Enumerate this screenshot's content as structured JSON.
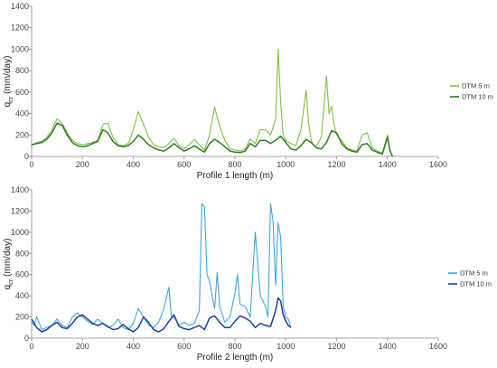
{
  "chart_data": [
    {
      "type": "line",
      "title": "",
      "xlabel": "Profile 1 length (m)",
      "ylabel_main": "q",
      "ylabel_sub": "cr",
      "ylabel_unit": " (mm/day)",
      "xlim": [
        0,
        1600
      ],
      "ylim": [
        0,
        1400
      ],
      "xticks": [
        0,
        200,
        400,
        600,
        800,
        1000,
        1200,
        1400,
        1600
      ],
      "yticks": [
        0,
        200,
        400,
        600,
        800,
        1000,
        1200,
        1400
      ],
      "grid": false,
      "legend_position": "right",
      "series": [
        {
          "name": "DTM 5 m",
          "color": "#7dc243",
          "x": [
            0,
            20,
            40,
            60,
            80,
            100,
            120,
            140,
            160,
            180,
            200,
            220,
            240,
            260,
            280,
            300,
            320,
            340,
            360,
            380,
            400,
            420,
            440,
            460,
            480,
            500,
            520,
            540,
            560,
            580,
            600,
            620,
            640,
            660,
            680,
            700,
            720,
            740,
            760,
            780,
            800,
            820,
            840,
            860,
            880,
            900,
            920,
            940,
            960,
            970,
            980,
            990,
            1000,
            1020,
            1040,
            1060,
            1080,
            1090,
            1100,
            1110,
            1120,
            1140,
            1160,
            1170,
            1180,
            1190,
            1200,
            1220,
            1240,
            1260,
            1280,
            1300,
            1320,
            1340,
            1360,
            1380,
            1400,
            1410,
            1420
          ],
          "values": [
            100,
            130,
            140,
            180,
            250,
            350,
            310,
            220,
            150,
            120,
            110,
            120,
            130,
            150,
            300,
            310,
            180,
            110,
            100,
            120,
            250,
            420,
            300,
            180,
            110,
            90,
            80,
            120,
            170,
            100,
            70,
            110,
            160,
            110,
            60,
            200,
            460,
            280,
            150,
            70,
            60,
            50,
            70,
            160,
            120,
            250,
            250,
            200,
            350,
            1000,
            500,
            200,
            150,
            120,
            100,
            250,
            620,
            300,
            150,
            100,
            90,
            180,
            750,
            400,
            470,
            300,
            200,
            150,
            80,
            60,
            50,
            200,
            220,
            80,
            50,
            30,
            200,
            60,
            0
          ]
        },
        {
          "name": "DTM 10 m",
          "color": "#2e7d24",
          "x": [
            0,
            20,
            40,
            60,
            80,
            100,
            120,
            140,
            160,
            180,
            200,
            220,
            240,
            260,
            280,
            300,
            320,
            340,
            360,
            380,
            400,
            420,
            440,
            460,
            480,
            500,
            520,
            540,
            560,
            580,
            600,
            620,
            640,
            660,
            680,
            700,
            720,
            740,
            760,
            780,
            800,
            820,
            840,
            860,
            880,
            900,
            920,
            940,
            960,
            980,
            1000,
            1020,
            1040,
            1060,
            1080,
            1100,
            1120,
            1140,
            1160,
            1180,
            1200,
            1220,
            1240,
            1260,
            1280,
            1300,
            1320,
            1340,
            1360,
            1380,
            1400,
            1410,
            1420
          ],
          "values": [
            110,
            120,
            130,
            160,
            220,
            310,
            290,
            200,
            130,
            100,
            90,
            100,
            120,
            140,
            250,
            220,
            140,
            100,
            90,
            100,
            140,
            200,
            160,
            110,
            80,
            60,
            50,
            80,
            120,
            80,
            50,
            70,
            100,
            70,
            40,
            120,
            160,
            130,
            90,
            50,
            40,
            35,
            50,
            120,
            90,
            150,
            150,
            120,
            150,
            190,
            130,
            70,
            60,
            100,
            160,
            130,
            80,
            70,
            130,
            240,
            220,
            120,
            70,
            50,
            40,
            110,
            120,
            60,
            40,
            20,
            180,
            50,
            0
          ]
        }
      ]
    },
    {
      "type": "line",
      "title": "",
      "xlabel": "Profile 2 length (m)",
      "ylabel_main": "q",
      "ylabel_sub": "cr",
      "ylabel_unit": " (mm/day)",
      "xlim": [
        0,
        1600
      ],
      "ylim": [
        0,
        1400
      ],
      "xticks": [
        0,
        200,
        400,
        600,
        800,
        1000,
        1200,
        1400,
        1600
      ],
      "yticks": [
        0,
        200,
        400,
        600,
        800,
        1000,
        1200,
        1400
      ],
      "grid": false,
      "legend_position": "right",
      "series": [
        {
          "name": "DTM 5 m",
          "color": "#41a6dd",
          "x": [
            0,
            10,
            20,
            40,
            60,
            80,
            100,
            120,
            140,
            160,
            180,
            200,
            220,
            240,
            260,
            280,
            300,
            320,
            340,
            360,
            380,
            400,
            420,
            440,
            460,
            480,
            500,
            520,
            540,
            550,
            560,
            580,
            600,
            620,
            640,
            660,
            670,
            680,
            690,
            700,
            710,
            720,
            730,
            740,
            760,
            780,
            800,
            810,
            820,
            840,
            860,
            880,
            900,
            920,
            930,
            940,
            950,
            960,
            970,
            980,
            990,
            1000,
            1010,
            1020
          ],
          "values": [
            150,
            120,
            200,
            80,
            100,
            120,
            180,
            120,
            100,
            200,
            240,
            200,
            160,
            130,
            180,
            140,
            100,
            120,
            180,
            100,
            80,
            140,
            280,
            200,
            120,
            100,
            150,
            280,
            480,
            200,
            200,
            120,
            150,
            120,
            140,
            260,
            1270,
            1240,
            600,
            540,
            400,
            280,
            620,
            300,
            150,
            200,
            420,
            600,
            320,
            300,
            200,
            1000,
            400,
            300,
            200,
            1270,
            1100,
            500,
            1090,
            950,
            300,
            200,
            180,
            100
          ]
        },
        {
          "name": "DTM 10 m",
          "color": "#1f3f9e",
          "x": [
            0,
            20,
            40,
            60,
            80,
            100,
            120,
            140,
            160,
            180,
            200,
            220,
            240,
            260,
            280,
            300,
            320,
            340,
            360,
            380,
            400,
            420,
            440,
            460,
            480,
            500,
            520,
            540,
            560,
            580,
            600,
            620,
            640,
            660,
            680,
            700,
            720,
            740,
            760,
            780,
            800,
            820,
            840,
            860,
            880,
            900,
            920,
            940,
            960,
            970,
            980,
            990,
            1000,
            1010,
            1020
          ],
          "values": [
            180,
            100,
            60,
            80,
            120,
            150,
            100,
            90,
            140,
            200,
            220,
            180,
            140,
            120,
            140,
            110,
            80,
            90,
            130,
            90,
            60,
            100,
            200,
            150,
            80,
            60,
            90,
            160,
            220,
            110,
            90,
            80,
            100,
            120,
            80,
            190,
            210,
            150,
            100,
            100,
            160,
            210,
            190,
            160,
            100,
            140,
            120,
            110,
            260,
            380,
            350,
            220,
            160,
            120,
            100
          ]
        }
      ]
    }
  ]
}
